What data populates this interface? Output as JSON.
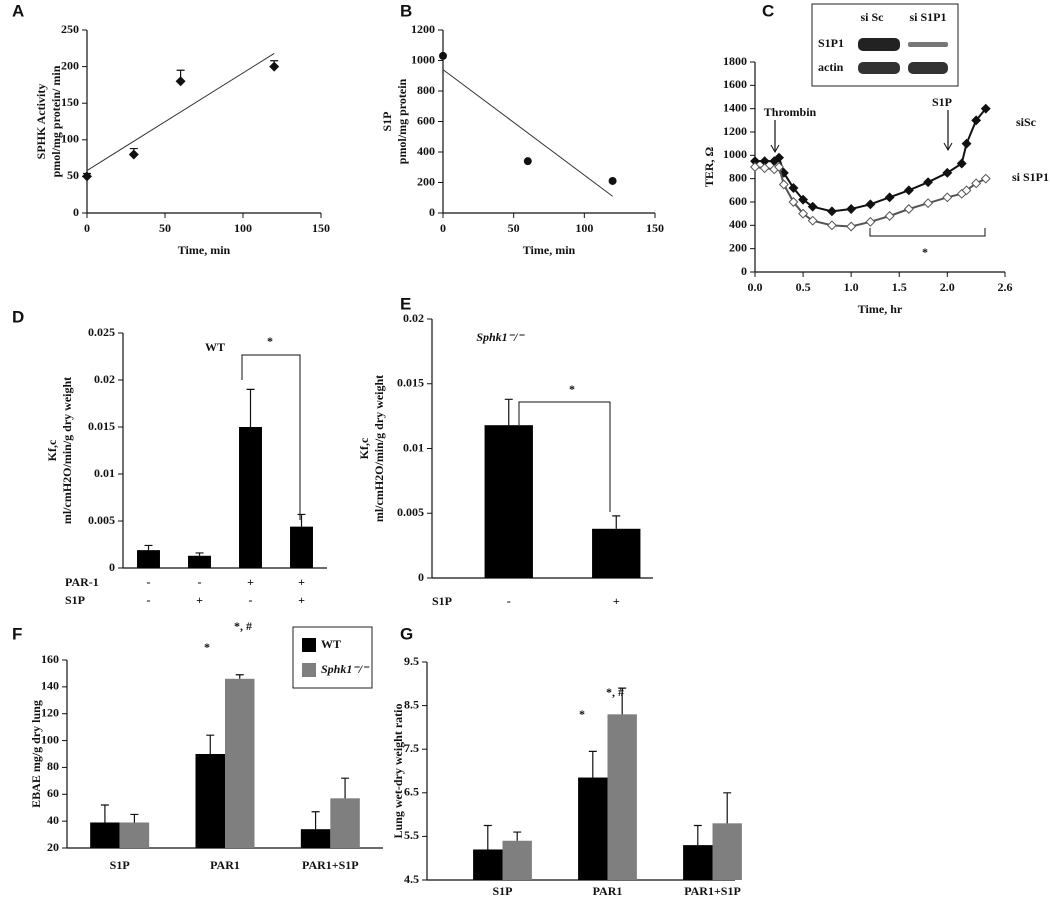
{
  "chart_data": [
    {
      "type": "scatter",
      "panel_label": "A",
      "xlabel": "Time, min",
      "ylabel": [
        "SPHK Activity",
        "pmol/mg protein/ min"
      ],
      "x": [
        0,
        30,
        60,
        120
      ],
      "values": [
        50,
        80,
        180,
        200
      ],
      "errors": [
        4,
        8,
        15,
        8
      ],
      "color": "#111111",
      "trendline": {
        "x": [
          0,
          120
        ],
        "y": [
          58,
          218
        ]
      },
      "xlim": [
        0,
        150
      ],
      "xticks": [
        0,
        50,
        100,
        150
      ],
      "ylim": [
        0,
        250
      ],
      "yticks": [
        0,
        50,
        100,
        150,
        200,
        250
      ]
    },
    {
      "type": "scatter",
      "panel_label": "B",
      "xlabel": "Time, min",
      "ylabel": [
        "S1P",
        "pmol/mg protein"
      ],
      "x": [
        0,
        60,
        120
      ],
      "values": [
        1030,
        340,
        210
      ],
      "color": "#111111",
      "trendline": {
        "x": [
          0,
          120
        ],
        "y": [
          940,
          110
        ]
      },
      "xlim": [
        0,
        150
      ],
      "xticks": [
        0,
        50,
        100,
        150
      ],
      "ylim": [
        0,
        1200
      ],
      "yticks": [
        0,
        200,
        400,
        600,
        800,
        1000,
        1200
      ]
    },
    {
      "type": "line",
      "panel_label": "C",
      "xlabel": "Time, hr",
      "ylabel": [
        "TER, Ω"
      ],
      "x": [
        0,
        0.1,
        0.2,
        0.25,
        0.3,
        0.4,
        0.5,
        0.6,
        0.8,
        1.0,
        1.2,
        1.4,
        1.6,
        1.8,
        2.0,
        2.15,
        2.2,
        2.3,
        2.4
      ],
      "series": [
        {
          "name": "siSc",
          "color": "#111111",
          "values": [
            950,
            950,
            950,
            980,
            850,
            720,
            620,
            560,
            520,
            540,
            580,
            640,
            700,
            770,
            850,
            930,
            1100,
            1300,
            1400
          ]
        },
        {
          "name": "si S1P1",
          "color": "#555555",
          "values": [
            900,
            890,
            880,
            900,
            750,
            600,
            500,
            440,
            400,
            390,
            430,
            480,
            540,
            590,
            640,
            670,
            700,
            760,
            800
          ]
        }
      ],
      "annotations": [
        "Thrombin",
        "S1P",
        "*"
      ],
      "inset": {
        "columns": [
          "si Sc",
          "si S1P1"
        ],
        "rows": [
          "S1P1",
          "actin"
        ]
      },
      "xlim": [
        0,
        2.6
      ],
      "xticks": [
        {
          "value": 0,
          "label": "0.0"
        },
        0.5,
        {
          "value": 1,
          "label": "1.0"
        },
        1.5,
        {
          "value": 2,
          "label": "2.0"
        },
        2.6
      ],
      "ylim": [
        0,
        1800
      ],
      "yticks": [
        0,
        200,
        400,
        600,
        800,
        1000,
        1200,
        1400,
        1600,
        1800
      ]
    },
    {
      "type": "bar",
      "panel_label": "D",
      "subtitle": "WT",
      "ylabel": [
        "Kf,c",
        "ml/cmH2O/min/g  dry weight"
      ],
      "categories": [
        null,
        null,
        null,
        null
      ],
      "values": [
        0.0019,
        0.0013,
        0.015,
        0.0044
      ],
      "errors": [
        0.0005,
        0.0003,
        0.004,
        0.0013
      ],
      "color": "#000000",
      "conditions": [
        {
          "name": "PAR-1",
          "labels": [
            "-",
            "-",
            "+",
            "+"
          ]
        },
        {
          "name": "S1P",
          "labels": [
            "-",
            "+",
            "-",
            "+"
          ]
        }
      ],
      "annotations": [
        "*"
      ],
      "ylim": [
        0,
        0.025
      ],
      "yticks": [
        0,
        0.005,
        0.01,
        0.015,
        0.02,
        0.025
      ]
    },
    {
      "type": "bar",
      "panel_label": "E",
      "subtitle": "Sphk1⁻/⁻",
      "ylabel": [
        "Kf,c",
        "ml/cmH2O/min/g dry weight"
      ],
      "categories": [
        null,
        null
      ],
      "values": [
        0.0118,
        0.0038
      ],
      "errors": [
        0.002,
        0.001
      ],
      "color": "#000000",
      "conditions": [
        {
          "name": "S1P",
          "labels": [
            "-",
            "+"
          ]
        }
      ],
      "annotations": [
        "*"
      ],
      "ylim": [
        0,
        0.02
      ],
      "yticks": [
        0,
        0.005,
        0.01,
        0.015,
        0.02
      ]
    },
    {
      "type": "bar",
      "panel_label": "F",
      "ylabel": [
        "EBAE mg/g dry lung"
      ],
      "categories": [
        "S1P",
        "PAR1",
        "PAR1+S1P"
      ],
      "series": [
        {
          "name": "WT",
          "color": "#000000",
          "values": [
            39,
            90,
            34
          ],
          "errors": [
            13,
            14,
            13
          ]
        },
        {
          "name": "Sphk1⁻/⁻",
          "color": "#7f7f7f",
          "values": [
            39,
            146,
            57
          ],
          "errors": [
            6,
            3,
            15
          ]
        }
      ],
      "annotations": [
        "*",
        "*, #"
      ],
      "legend": true,
      "ylim": [
        20,
        160
      ],
      "yticks": [
        20,
        40,
        60,
        80,
        100,
        120,
        140,
        160
      ]
    },
    {
      "type": "bar",
      "panel_label": "G",
      "ylabel": [
        "Lung wet-dry weight ratio"
      ],
      "categories": [
        "S1P",
        "PAR1",
        "PAR1+S1P"
      ],
      "series": [
        {
          "color": "#000000",
          "values": [
            5.2,
            6.85,
            5.3
          ],
          "errors": [
            0.55,
            0.6,
            0.45
          ]
        },
        {
          "color": "#7f7f7f",
          "values": [
            5.4,
            8.3,
            5.8
          ],
          "errors": [
            0.2,
            0.6,
            0.7
          ]
        }
      ],
      "annotations": [
        "*",
        "*, #"
      ],
      "legend": false,
      "ylim": [
        4.5,
        9.5
      ],
      "yticks": [
        4.5,
        5.5,
        6.5,
        7.5,
        8.5,
        9.5
      ]
    }
  ]
}
